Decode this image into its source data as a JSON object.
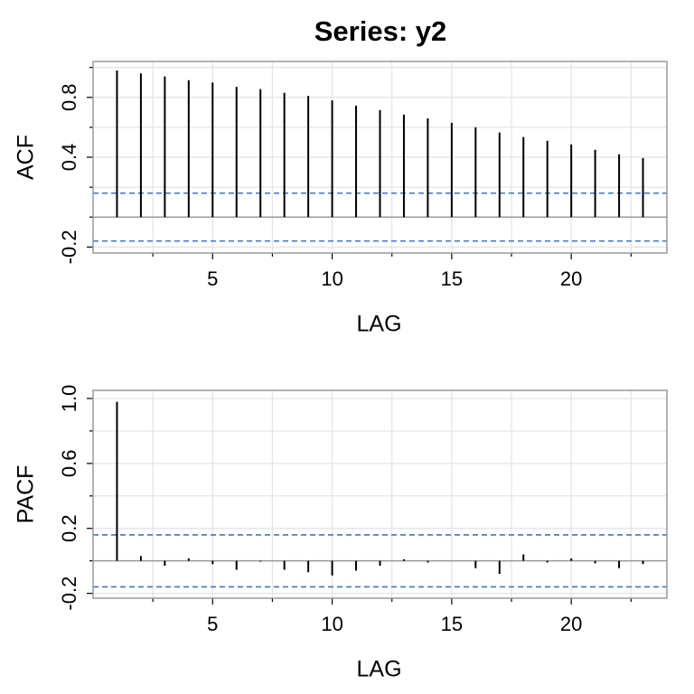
{
  "title": "Series:  y2",
  "chart_data": [
    {
      "type": "bar",
      "xlabel": "LAG",
      "ylabel": "ACF",
      "x": [
        1,
        2,
        3,
        4,
        5,
        6,
        7,
        8,
        9,
        10,
        11,
        12,
        13,
        14,
        15,
        16,
        17,
        18,
        19,
        20,
        21,
        22,
        23
      ],
      "values": [
        0.98,
        0.96,
        0.94,
        0.915,
        0.9,
        0.87,
        0.855,
        0.83,
        0.81,
        0.78,
        0.745,
        0.715,
        0.685,
        0.66,
        0.63,
        0.6,
        0.565,
        0.535,
        0.51,
        0.485,
        0.45,
        0.42,
        0.395
      ],
      "color": "#000000",
      "xlim": [
        0,
        24
      ],
      "ylim": [
        -0.24,
        1.04
      ],
      "xticks": [
        5,
        10,
        15,
        20
      ],
      "x_minor_ticks": [
        2.5,
        7.5,
        12.5,
        17.5,
        22.5
      ],
      "yticks": [
        -0.2,
        0.4,
        0.8
      ],
      "y_minor_ticks": [
        0,
        0.2,
        0.6,
        1
      ],
      "ci": [
        0.16,
        -0.16
      ],
      "ci_color": "#3a78c2",
      "grid": true
    },
    {
      "type": "bar",
      "xlabel": "LAG",
      "ylabel": "PACF",
      "x": [
        1,
        2,
        3,
        4,
        5,
        6,
        7,
        8,
        9,
        10,
        11,
        12,
        13,
        14,
        15,
        16,
        17,
        18,
        19,
        20,
        21,
        22,
        23
      ],
      "values": [
        0.98,
        0.03,
        -0.03,
        0.015,
        -0.02,
        -0.055,
        -0.005,
        -0.055,
        -0.07,
        -0.09,
        -0.06,
        -0.03,
        0.01,
        -0.01,
        0,
        -0.045,
        -0.08,
        0.04,
        -0.01,
        0.015,
        -0.015,
        -0.045,
        -0.02
      ],
      "color": "#000000",
      "xlim": [
        0,
        24
      ],
      "ylim": [
        -0.23,
        1.05
      ],
      "xticks": [
        5,
        10,
        15,
        20
      ],
      "x_minor_ticks": [
        2.5,
        7.5,
        12.5,
        17.5,
        22.5
      ],
      "yticks": [
        -0.2,
        0.2,
        0.6,
        {
          "value": 1,
          "label": "1.0"
        }
      ],
      "y_minor_ticks": [
        0,
        0.4,
        0.8
      ],
      "ci": [
        0.16,
        -0.16
      ],
      "ci_color": "#3a78c2",
      "grid": true
    }
  ]
}
